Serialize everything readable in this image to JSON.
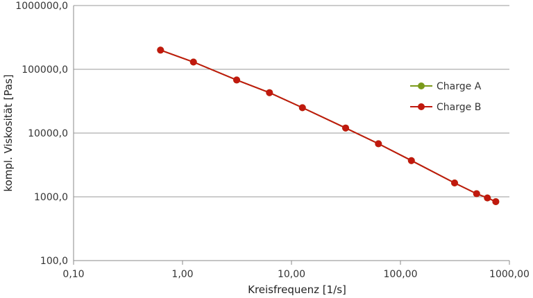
{
  "chart_data": {
    "type": "line",
    "title": "",
    "xlabel": "Kreisfrequenz [1/s]",
    "ylabel": "kompl. Viskosität [Pas]",
    "x_scale": "log",
    "y_scale": "log",
    "xlim": [
      0.1,
      1000
    ],
    "ylim": [
      100,
      1000000
    ],
    "x_ticks": [
      0.1,
      1,
      10,
      100,
      1000
    ],
    "x_tick_labels": [
      "0,10",
      "1,00",
      "10,00",
      "100,00",
      "1000,00"
    ],
    "y_ticks": [
      100,
      1000,
      10000,
      100000,
      1000000
    ],
    "y_tick_labels": [
      "100,0",
      "1000,0",
      "10000,0",
      "100000,0",
      "1000000,0"
    ],
    "grid": "horizontal",
    "legend_position": "right",
    "series": [
      {
        "name": "Charge A",
        "color": "#7a9a1a",
        "x": [
          0.628,
          1.26,
          3.14,
          6.28,
          12.6,
          31.4,
          62.8,
          126,
          314,
          500,
          628,
          750
        ],
        "y": [
          200000,
          130000,
          68000,
          43000,
          25000,
          12000,
          6800,
          3700,
          1650,
          1120,
          960,
          840
        ]
      },
      {
        "name": "Charge B",
        "color": "#c0190e",
        "x": [
          0.628,
          1.26,
          3.14,
          6.28,
          12.6,
          31.4,
          62.8,
          126,
          314,
          500,
          628,
          750
        ],
        "y": [
          200000,
          130000,
          68000,
          43000,
          25000,
          12000,
          6800,
          3700,
          1650,
          1120,
          960,
          840
        ]
      }
    ]
  }
}
